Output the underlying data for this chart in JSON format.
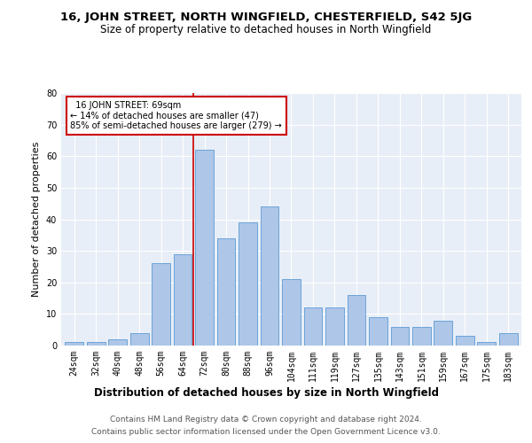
{
  "title1": "16, JOHN STREET, NORTH WINGFIELD, CHESTERFIELD, S42 5JG",
  "title2": "Size of property relative to detached houses in North Wingfield",
  "xlabel": "Distribution of detached houses by size in North Wingfield",
  "ylabel": "Number of detached properties",
  "categories": [
    "24sqm",
    "32sqm",
    "40sqm",
    "48sqm",
    "56sqm",
    "64sqm",
    "72sqm",
    "80sqm",
    "88sqm",
    "96sqm",
    "104sqm",
    "111sqm",
    "119sqm",
    "127sqm",
    "135sqm",
    "143sqm",
    "151sqm",
    "159sqm",
    "167sqm",
    "175sqm",
    "183sqm"
  ],
  "values": [
    1,
    1,
    2,
    4,
    26,
    29,
    62,
    34,
    39,
    44,
    21,
    12,
    12,
    16,
    9,
    6,
    6,
    8,
    3,
    1,
    4
  ],
  "bar_color": "#aec6e8",
  "bar_edge_color": "#5b9bd5",
  "annotation_box_color": "#ffffff",
  "annotation_box_edge": "#cc0000",
  "vline_color": "#cc0000",
  "ylim": [
    0,
    80
  ],
  "yticks": [
    0,
    10,
    20,
    30,
    40,
    50,
    60,
    70,
    80
  ],
  "plot_bg_color": "#e8eef7",
  "marker_label": "16 JOHN STREET: 69sqm",
  "pct_smaller": "14% of detached houses are smaller (47)",
  "pct_larger": "85% of semi-detached houses are larger (279)",
  "footer1": "Contains HM Land Registry data © Crown copyright and database right 2024.",
  "footer2": "Contains public sector information licensed under the Open Government Licence v3.0.",
  "title1_fontsize": 9.5,
  "title2_fontsize": 8.5,
  "xlabel_fontsize": 8.5,
  "ylabel_fontsize": 8,
  "tick_fontsize": 7,
  "annot_fontsize": 7,
  "footer_fontsize": 6.5
}
